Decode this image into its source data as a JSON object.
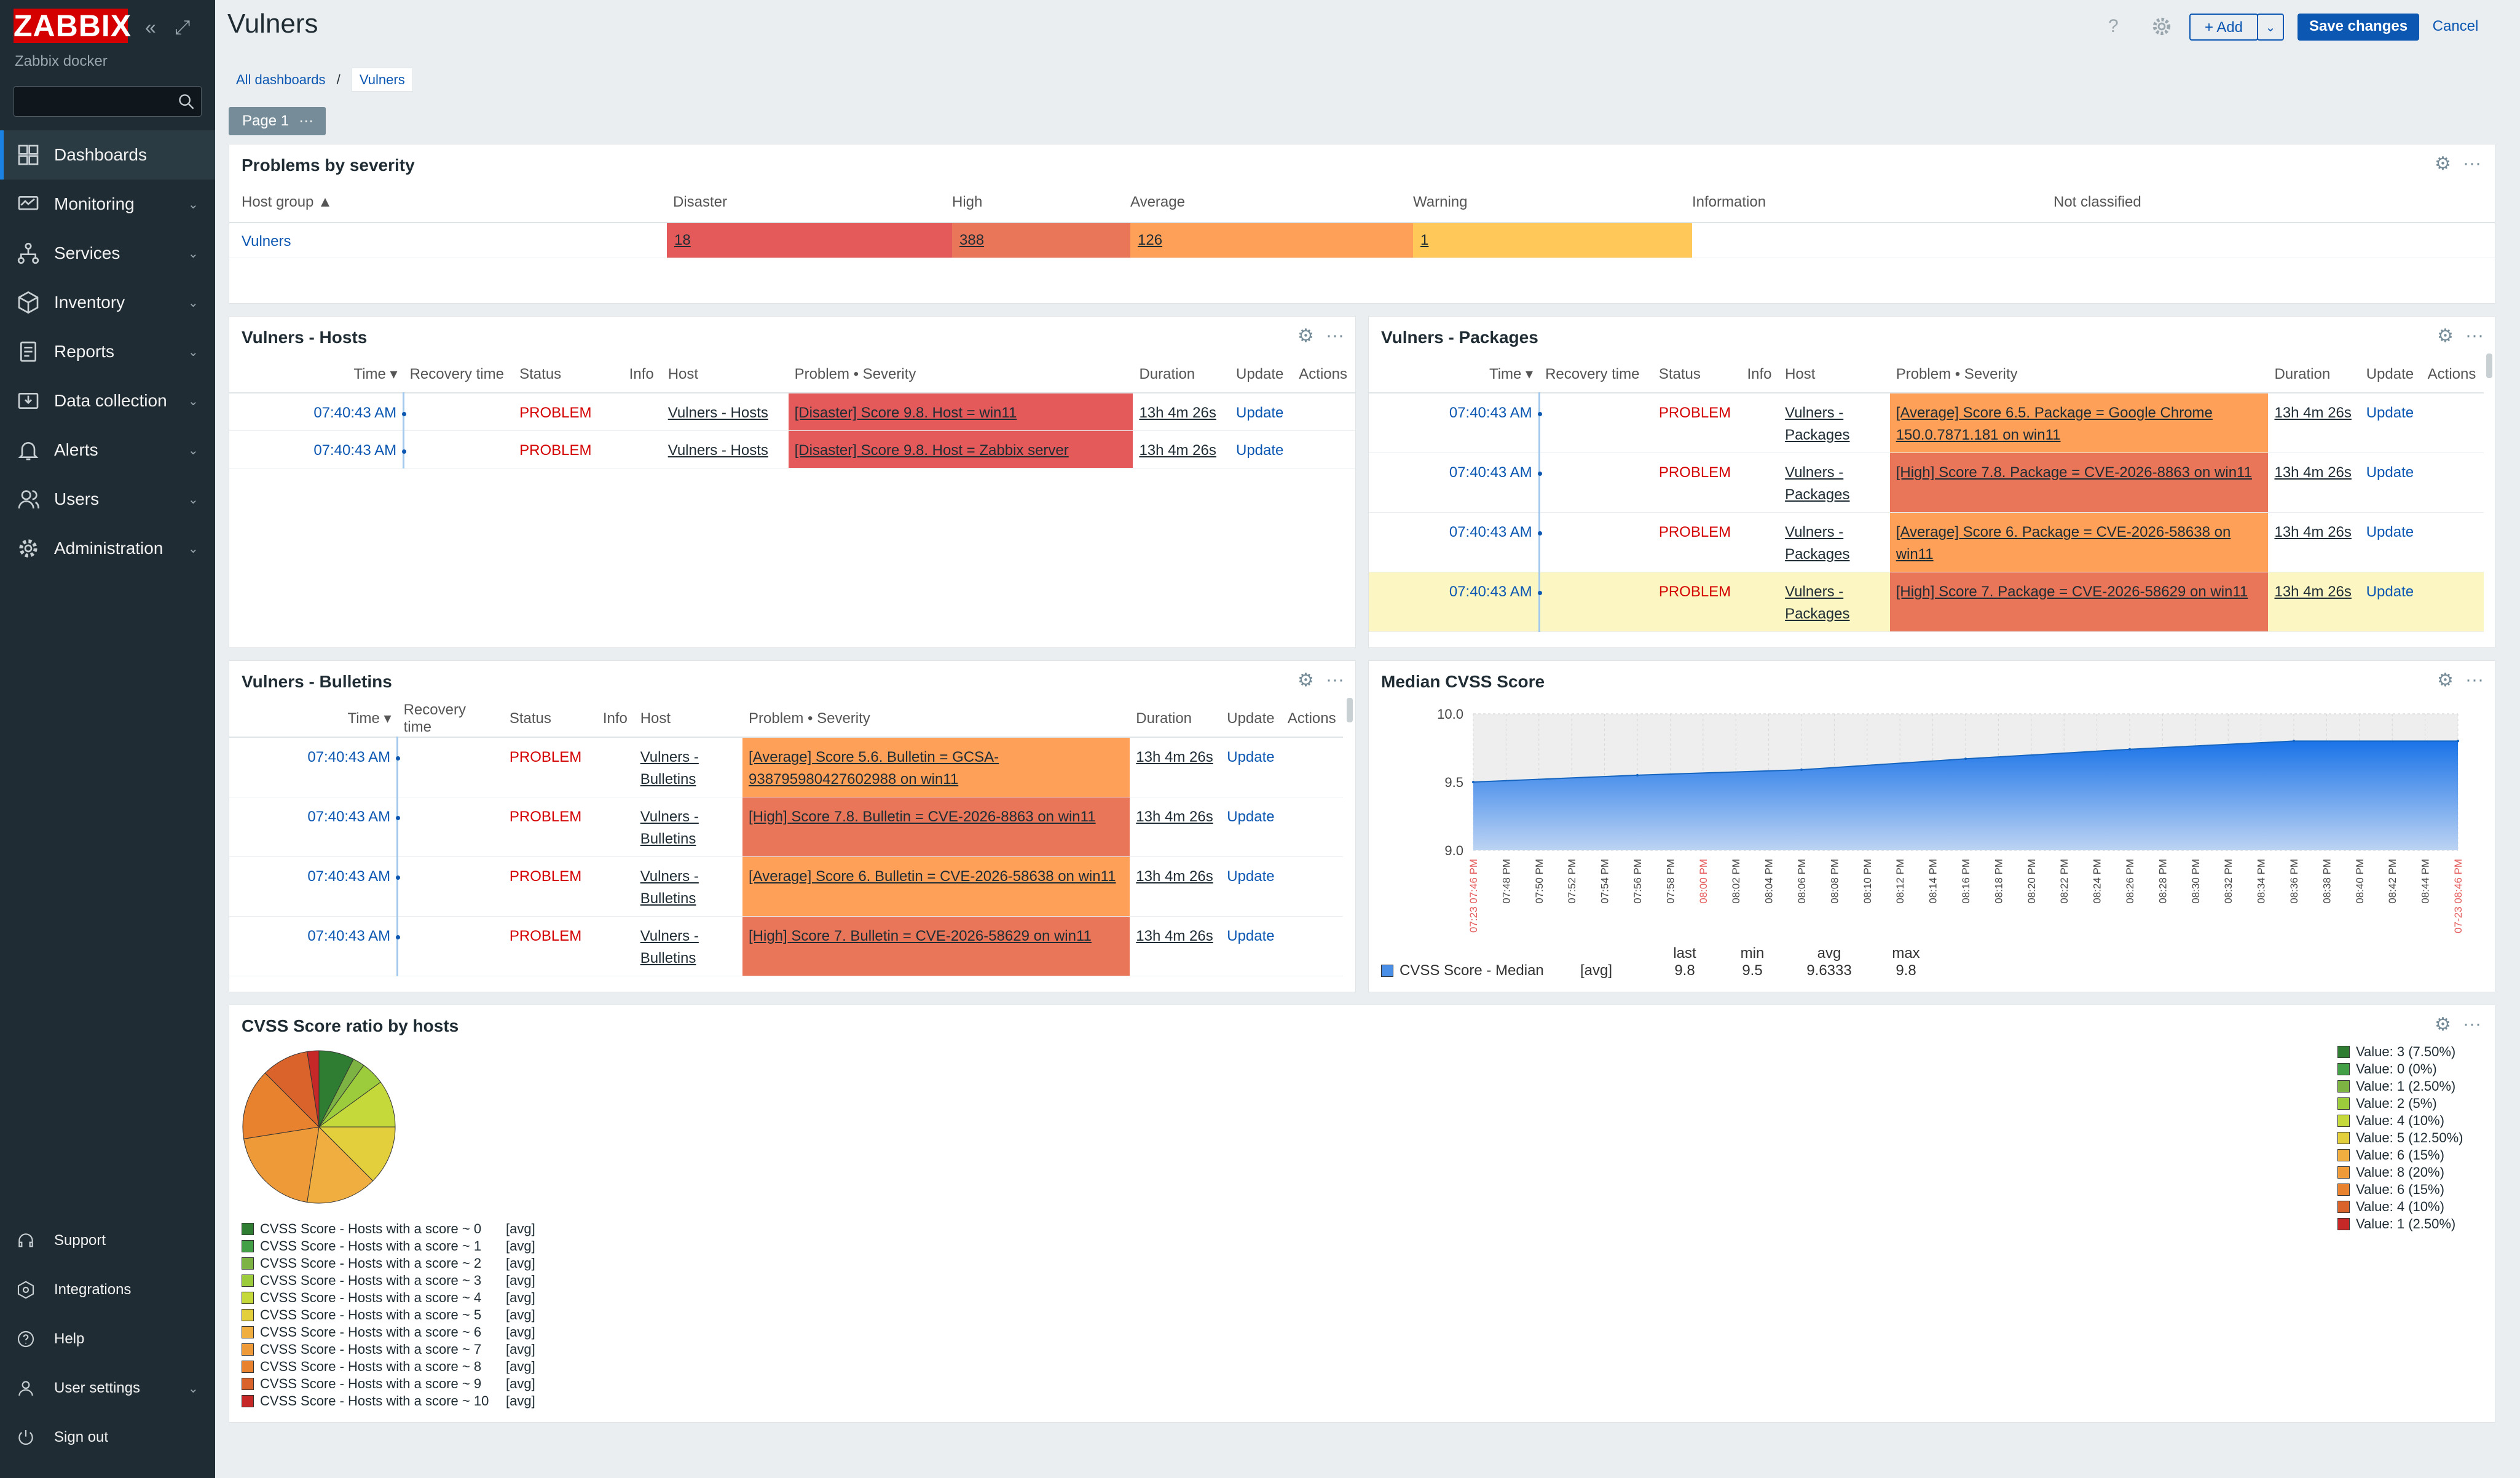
{
  "app": {
    "logo": "ZABBIX",
    "instance": "Zabbix docker"
  },
  "sidebar": {
    "items": [
      {
        "label": "Dashboards",
        "icon": "dashboard-icon"
      },
      {
        "label": "Monitoring",
        "icon": "monitoring-icon"
      },
      {
        "label": "Services",
        "icon": "services-icon"
      },
      {
        "label": "Inventory",
        "icon": "inventory-icon"
      },
      {
        "label": "Reports",
        "icon": "reports-icon"
      },
      {
        "label": "Data collection",
        "icon": "data-collection-icon"
      },
      {
        "label": "Alerts",
        "icon": "alerts-icon"
      },
      {
        "label": "Users",
        "icon": "users-icon"
      },
      {
        "label": "Administration",
        "icon": "administration-icon"
      }
    ],
    "bottom": [
      {
        "label": "Support",
        "icon": "support-icon"
      },
      {
        "label": "Integrations",
        "icon": "integrations-icon"
      },
      {
        "label": "Help",
        "icon": "help-icon"
      },
      {
        "label": "User settings",
        "icon": "user-icon"
      },
      {
        "label": "Sign out",
        "icon": "power-icon"
      }
    ]
  },
  "header": {
    "title": "Vulners",
    "help": "?",
    "add_label": "Add",
    "save_label": "Save changes",
    "cancel_label": "Cancel"
  },
  "breadcrumb": {
    "all": "All dashboards",
    "sep": "/",
    "current": "Vulners"
  },
  "page_tab": "Page 1",
  "severity_widget": {
    "title": "Problems by severity",
    "columns": [
      "Host group ▲",
      "Disaster",
      "High",
      "Average",
      "Warning",
      "Information",
      "Not classified"
    ],
    "row": {
      "group": "Vulners",
      "disaster": "18",
      "high": "388",
      "average": "126",
      "warning": "1"
    }
  },
  "problem_columns": [
    "Time ▾",
    "Recovery time",
    "Status",
    "Info",
    "Host",
    "Problem • Severity",
    "Duration",
    "Update",
    "Actions"
  ],
  "hosts_widget": {
    "title": "Vulners - Hosts",
    "rows": [
      {
        "time": "07:40:43 AM",
        "status": "PROBLEM",
        "host": "Vulners - Hosts",
        "problem": "[Disaster] Score 9.8. Host = win11",
        "severity": "disaster",
        "duration": "13h 4m 26s",
        "update": "Update"
      },
      {
        "time": "07:40:43 AM",
        "status": "PROBLEM",
        "host": "Vulners - Hosts",
        "problem": "[Disaster] Score 9.8. Host = Zabbix server",
        "severity": "disaster",
        "duration": "13h 4m 26s",
        "update": "Update"
      }
    ]
  },
  "packages_widget": {
    "title": "Vulners - Packages",
    "rows": [
      {
        "time": "07:40:43 AM",
        "status": "PROBLEM",
        "host": "Vulners - Packages",
        "problem": "[Average] Score 6.5. Package = Google Chrome 150.0.7871.181 on win11",
        "severity": "average",
        "duration": "13h 4m 26s",
        "update": "Update"
      },
      {
        "time": "07:40:43 AM",
        "status": "PROBLEM",
        "host": "Vulners - Packages",
        "problem": "[High] Score 7.8. Package = CVE-2026-8863 on win11",
        "severity": "high",
        "duration": "13h 4m 26s",
        "update": "Update"
      },
      {
        "time": "07:40:43 AM",
        "status": "PROBLEM",
        "host": "Vulners - Packages",
        "problem": "[Average] Score 6. Package = CVE-2026-58638 on win11",
        "severity": "average",
        "duration": "13h 4m 26s",
        "update": "Update"
      },
      {
        "time": "07:40:43 AM",
        "status": "PROBLEM",
        "host": "Vulners - Packages",
        "problem": "[High] Score 7. Package = CVE-2026-58629 on win11",
        "severity": "high",
        "duration": "13h 4m 26s",
        "update": "Update"
      }
    ]
  },
  "bulletins_widget": {
    "title": "Vulners - Bulletins",
    "rows": [
      {
        "time": "07:40:43 AM",
        "status": "PROBLEM",
        "host": "Vulners - Bulletins",
        "problem": "[Average] Score 5.6. Bulletin = GCSA-938795980427602988 on win11",
        "severity": "average",
        "duration": "13h 4m 26s",
        "update": "Update"
      },
      {
        "time": "07:40:43 AM",
        "status": "PROBLEM",
        "host": "Vulners - Bulletins",
        "problem": "[High] Score 7.8. Bulletin = CVE-2026-8863 on win11",
        "severity": "high",
        "duration": "13h 4m 26s",
        "update": "Update"
      },
      {
        "time": "07:40:43 AM",
        "status": "PROBLEM",
        "host": "Vulners - Bulletins",
        "problem": "[Average] Score 6. Bulletin = CVE-2026-58638 on win11",
        "severity": "average",
        "duration": "13h 4m 26s",
        "update": "Update"
      },
      {
        "time": "07:40:43 AM",
        "status": "PROBLEM",
        "host": "Vulners - Bulletins",
        "problem": "[High] Score 7. Bulletin = CVE-2026-58629 on win11",
        "severity": "high",
        "duration": "13h 4m 26s",
        "update": "Update"
      }
    ]
  },
  "chart_data": [
    {
      "type": "area",
      "title": "Median CVSS Score",
      "ylim": [
        9.0,
        10.0
      ],
      "y_ticks": [
        "10.0",
        "9.5",
        "9.0"
      ],
      "x_ticks": [
        "07:23 07:46 PM",
        "07:48 PM",
        "07:50 PM",
        "07:52 PM",
        "07:54 PM",
        "07:56 PM",
        "07:58 PM",
        "08:00 PM",
        "08:02 PM",
        "08:04 PM",
        "08:06 PM",
        "08:08 PM",
        "08:10 PM",
        "08:12 PM",
        "08:14 PM",
        "08:16 PM",
        "08:18 PM",
        "08:20 PM",
        "08:22 PM",
        "08:24 PM",
        "08:26 PM",
        "08:28 PM",
        "08:30 PM",
        "08:32 PM",
        "08:34 PM",
        "08:36 PM",
        "08:38 PM",
        "08:40 PM",
        "08:42 PM",
        "08:44 PM",
        "07-23 08:46 PM"
      ],
      "red_ticks": [
        "07:23 07:46 PM",
        "08:00 PM",
        "07-23 08:46 PM"
      ],
      "series": [
        {
          "name": "CVSS Score - Median",
          "color": "#1a73e8",
          "x": [
            0,
            5,
            10,
            15,
            20,
            25,
            30
          ],
          "values": [
            9.5,
            9.55,
            9.59,
            9.67,
            9.74,
            9.8,
            9.8
          ]
        }
      ],
      "legend": {
        "name": "CVSS Score - Median",
        "func": "[avg]",
        "headers": [
          "last",
          "min",
          "avg",
          "max"
        ],
        "values": [
          "9.8",
          "9.5",
          "9.6333",
          "9.8"
        ]
      }
    },
    {
      "type": "pie",
      "title": "CVSS Score ratio by hosts",
      "slices": [
        {
          "label": "Value: 3 (7.50%)",
          "value": 7.5,
          "color": "#2e7d32"
        },
        {
          "label": "Value: 0 (0%)",
          "value": 0,
          "color": "#43a047"
        },
        {
          "label": "Value: 1 (2.50%)",
          "value": 2.5,
          "color": "#7cb342"
        },
        {
          "label": "Value: 2 (5%)",
          "value": 5,
          "color": "#9ccc3c"
        },
        {
          "label": "Value: 4 (10%)",
          "value": 10,
          "color": "#c5d93a"
        },
        {
          "label": "Value: 5 (12.50%)",
          "value": 12.5,
          "color": "#e3cf3c"
        },
        {
          "label": "Value: 6 (15%)",
          "value": 15,
          "color": "#efae3f"
        },
        {
          "label": "Value: 8 (20%)",
          "value": 20,
          "color": "#ef9a39"
        },
        {
          "label": "Value: 6 (15%)",
          "value": 15,
          "color": "#e9822f"
        },
        {
          "label": "Value: 4 (10%)",
          "value": 10,
          "color": "#d9632a"
        },
        {
          "label": "Value: 1 (2.50%)",
          "value": 2.5,
          "color": "#c62828"
        }
      ],
      "host_legend": [
        {
          "label": "CVSS Score - Hosts with a score ~ 0",
          "func": "[avg]",
          "color": "#2e7d32"
        },
        {
          "label": "CVSS Score - Hosts with a score ~ 1",
          "func": "[avg]",
          "color": "#43a047"
        },
        {
          "label": "CVSS Score - Hosts with a score ~ 2",
          "func": "[avg]",
          "color": "#7cb342"
        },
        {
          "label": "CVSS Score - Hosts with a score ~ 3",
          "func": "[avg]",
          "color": "#9ccc3c"
        },
        {
          "label": "CVSS Score - Hosts with a score ~ 4",
          "func": "[avg]",
          "color": "#c5d93a"
        },
        {
          "label": "CVSS Score - Hosts with a score ~ 5",
          "func": "[avg]",
          "color": "#e3cf3c"
        },
        {
          "label": "CVSS Score - Hosts with a score ~ 6",
          "func": "[avg]",
          "color": "#efae3f"
        },
        {
          "label": "CVSS Score - Hosts with a score ~ 7",
          "func": "[avg]",
          "color": "#ef9a39"
        },
        {
          "label": "CVSS Score - Hosts with a score ~ 8",
          "func": "[avg]",
          "color": "#e9822f"
        },
        {
          "label": "CVSS Score - Hosts with a score ~ 9",
          "func": "[avg]",
          "color": "#d9632a"
        },
        {
          "label": "CVSS Score - Hosts with a score ~ 10",
          "func": "[avg]",
          "color": "#c62828"
        }
      ]
    }
  ]
}
